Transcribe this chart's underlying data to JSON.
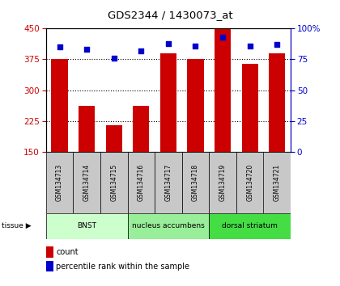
{
  "title": "GDS2344 / 1430073_at",
  "samples": [
    "GSM134713",
    "GSM134714",
    "GSM134715",
    "GSM134716",
    "GSM134717",
    "GSM134718",
    "GSM134719",
    "GSM134720",
    "GSM134721"
  ],
  "counts": [
    375,
    262,
    215,
    262,
    390,
    375,
    450,
    365,
    390
  ],
  "percentiles": [
    85,
    83,
    76,
    82,
    88,
    86,
    93,
    86,
    87
  ],
  "ymin": 150,
  "ymax": 450,
  "yticks": [
    150,
    225,
    300,
    375,
    450
  ],
  "y2ticks": [
    0,
    25,
    50,
    75,
    100
  ],
  "bar_color": "#cc0000",
  "dot_color": "#0000cc",
  "tissue_groups": [
    {
      "label": "BNST",
      "start": 0,
      "end": 3,
      "color": "#ccffcc"
    },
    {
      "label": "nucleus accumbens",
      "start": 3,
      "end": 6,
      "color": "#99ee99"
    },
    {
      "label": "dorsal striatum",
      "start": 6,
      "end": 9,
      "color": "#44dd44"
    }
  ],
  "legend_count_label": "count",
  "legend_pct_label": "percentile rank within the sample",
  "tissue_label": "tissue"
}
